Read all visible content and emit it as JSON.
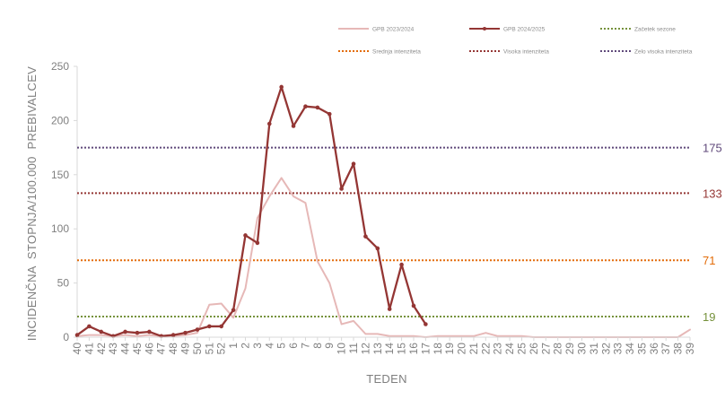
{
  "chart_data": {
    "type": "line",
    "xlabel": "TEDEN",
    "ylabel": "INCIDENČNA  STOPNJA/100.000  PREBIVALCEV",
    "ylim": [
      0,
      250
    ],
    "yticks": [
      0,
      50,
      100,
      150,
      200,
      250
    ],
    "grid": false,
    "legend_position": "top",
    "categories": [
      "40",
      "41",
      "42",
      "43",
      "44",
      "45",
      "46",
      "47",
      "48",
      "49",
      "50",
      "51",
      "52",
      "1",
      "2",
      "3",
      "4",
      "5",
      "6",
      "7",
      "8",
      "9",
      "10",
      "11",
      "12",
      "13",
      "14",
      "15",
      "16",
      "17",
      "18",
      "19",
      "20",
      "21",
      "22",
      "23",
      "24",
      "25",
      "26",
      "27",
      "28",
      "29",
      "30",
      "31",
      "32",
      "33",
      "34",
      "35",
      "36",
      "37",
      "38",
      "39"
    ],
    "series": [
      {
        "name": "GPB 2023/2024",
        "color": "#e6b8b7",
        "style": "solid",
        "values": [
          1,
          2,
          2,
          1,
          2,
          1,
          2,
          1,
          1,
          2,
          4,
          30,
          31,
          18,
          45,
          110,
          130,
          147,
          130,
          124,
          70,
          50,
          12,
          15,
          3,
          3,
          1,
          1,
          1,
          0,
          1,
          1,
          1,
          1,
          4,
          1,
          1,
          1,
          0,
          0,
          0,
          0,
          0,
          0,
          0,
          0,
          0,
          0,
          0,
          0,
          0,
          7
        ]
      },
      {
        "name": "GPB 2024/2025",
        "color": "#943634",
        "style": "solid-marker",
        "values": [
          2,
          10,
          5,
          1,
          5,
          4,
          5,
          1,
          2,
          4,
          7,
          10,
          10,
          25,
          94,
          87,
          197,
          231,
          195,
          213,
          212,
          206,
          137,
          160,
          93,
          82,
          26,
          67,
          29,
          12,
          null,
          null,
          null,
          null,
          null,
          null,
          null,
          null,
          null,
          null,
          null,
          null,
          null,
          null,
          null,
          null,
          null,
          null,
          null,
          null,
          null,
          null
        ]
      }
    ],
    "thresholds": [
      {
        "name": "Začetek sezone",
        "value": 19,
        "label": "19",
        "color": "#76923c"
      },
      {
        "name": "Srednja intenziteta",
        "value": 71,
        "label": "71",
        "color": "#e36c09"
      },
      {
        "name": "Visoka intenziteta",
        "value": 133,
        "label": "133",
        "color": "#953735"
      },
      {
        "name": "Zelo visoka intenziteta",
        "value": 175,
        "label": "175",
        "color": "#604a7b"
      }
    ]
  }
}
